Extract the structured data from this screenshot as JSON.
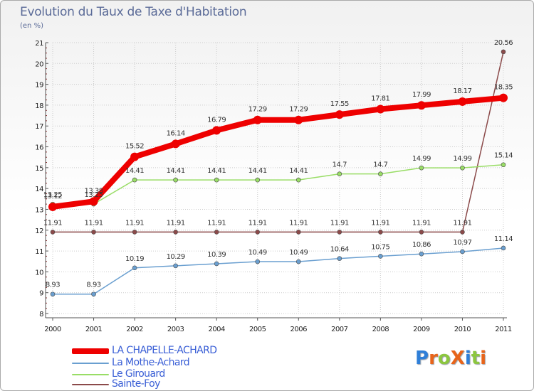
{
  "title": "Evolution du Taux de Taxe d'Habitation",
  "unit_label": "(en %)",
  "logo": {
    "text": "ProXiti",
    "letters": [
      {
        "ch": "P",
        "color": "#2f7fd8"
      },
      {
        "ch": "r",
        "color": "#e8641a"
      },
      {
        "ch": "o",
        "color": "#8cc63f"
      },
      {
        "ch": "X",
        "color": "#e8641a"
      },
      {
        "ch": "i",
        "color": "#2f7fd8"
      },
      {
        "ch": "t",
        "color": "#8cc63f"
      },
      {
        "ch": "i",
        "color": "#e8641a"
      }
    ]
  },
  "chart_data": {
    "type": "line",
    "title": "Evolution du Taux de Taxe d'Habitation",
    "ylabel": "(en %)",
    "xlabel": "",
    "x": [
      "2000",
      "2001",
      "2002",
      "2003",
      "2004",
      "2005",
      "2006",
      "2007",
      "2008",
      "2009",
      "2010",
      "2011"
    ],
    "ylim": [
      8,
      21
    ],
    "yticks": [
      "8",
      "9",
      "10",
      "11",
      "12",
      "13",
      "14",
      "15",
      "16",
      "17",
      "18",
      "19",
      "20",
      "21"
    ],
    "grid": true,
    "legend_position": "bottom-left",
    "series": [
      {
        "name": "LA CHAPELLE-ACHARD",
        "color": "#ee0000",
        "values": [
          13.12,
          13.38,
          15.52,
          16.14,
          16.79,
          17.29,
          17.29,
          17.55,
          17.81,
          17.99,
          18.17,
          18.35
        ],
        "labels": [
          "13.12",
          "13.38",
          "15.52",
          "16.14",
          "16.79",
          "17.29",
          "17.29",
          "17.55",
          "17.81",
          "17.99",
          "18.17",
          "18.35"
        ]
      },
      {
        "name": "La Mothe-Achard",
        "color": "#6a9fd0",
        "values": [
          8.93,
          8.93,
          10.19,
          10.29,
          10.39,
          10.49,
          10.49,
          10.64,
          10.75,
          10.86,
          10.97,
          11.14
        ],
        "labels": [
          "8.93",
          "8.93",
          "10.19",
          "10.29",
          "10.39",
          "10.49",
          "10.49",
          "10.64",
          "10.75",
          "10.86",
          "10.97",
          "11.14"
        ]
      },
      {
        "name": "Le Girouard",
        "color": "#99dd66",
        "values": [
          13.25,
          13.25,
          14.41,
          14.41,
          14.41,
          14.41,
          14.41,
          14.7,
          14.7,
          14.99,
          14.99,
          15.14
        ],
        "labels": [
          "13.25",
          "13.25",
          "14.41",
          "14.41",
          "14.41",
          "14.41",
          "14.41",
          "14.7",
          "14.7",
          "14.99",
          "14.99",
          "15.14"
        ]
      },
      {
        "name": "Sainte-Foy",
        "color": "#8b4a4a",
        "values": [
          11.91,
          11.91,
          11.91,
          11.91,
          11.91,
          11.91,
          11.91,
          11.91,
          11.91,
          11.91,
          11.91,
          20.56
        ],
        "labels": [
          "11.91",
          "11.91",
          "11.91",
          "11.91",
          "11.91",
          "11.91",
          "11.91",
          "11.91",
          "11.91",
          "11.91",
          "11.91",
          "20.56"
        ]
      }
    ]
  }
}
